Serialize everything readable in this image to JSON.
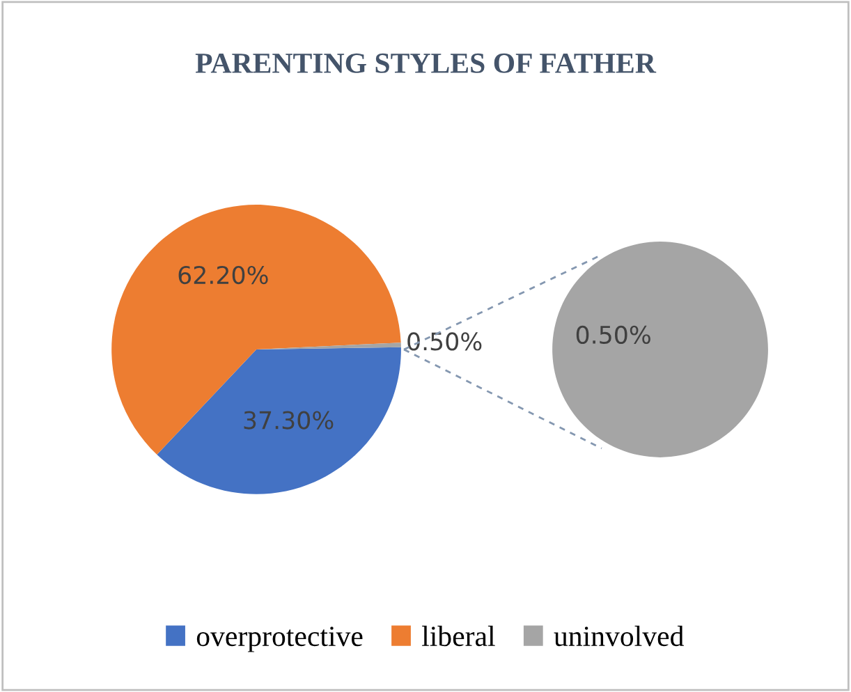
{
  "chart_data": [
    {
      "type": "pie",
      "title": "PARENTING STYLES OF FATHER",
      "categories": [
        "overprotective",
        "liberal",
        "uninvolved"
      ],
      "values": [
        37.3,
        62.2,
        0.5
      ],
      "colors": [
        "#4472c4",
        "#ed7d31",
        "#a5a5a5"
      ],
      "value_labels": [
        "37.30%",
        "62.20%",
        "0.50%"
      ],
      "legend": "bottom"
    },
    {
      "type": "pie",
      "categories": [
        null
      ],
      "values": [
        0.5
      ],
      "colors": [
        "#a5a5a5"
      ],
      "value_labels": [
        "0.50%"
      ]
    }
  ]
}
